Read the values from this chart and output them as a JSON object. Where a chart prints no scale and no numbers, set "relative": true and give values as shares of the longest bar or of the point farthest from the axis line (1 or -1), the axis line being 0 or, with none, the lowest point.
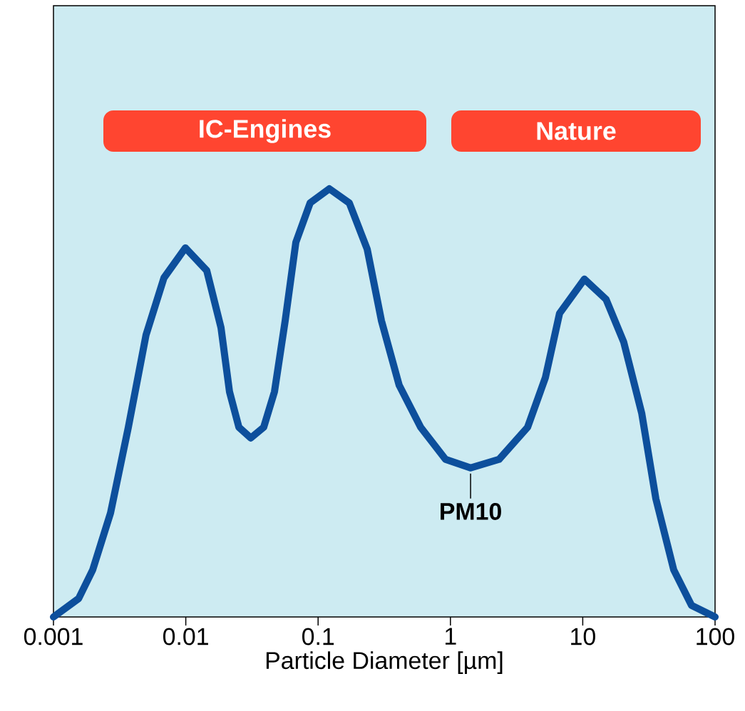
{
  "chart_data": {
    "type": "line",
    "relative": true,
    "xlabel": "Particle Diameter [µm]",
    "log": "x",
    "xlim": [
      0.001,
      100
    ],
    "xticks": [
      0.001,
      0.01,
      0.1,
      1,
      10,
      100
    ],
    "tick_labels": "x",
    "x": [
      0.001,
      0.00155,
      0.00198,
      0.0027,
      0.00368,
      0.00501,
      0.00684,
      0.00993,
      0.0144,
      0.01845,
      0.0214,
      0.0252,
      0.031,
      0.0388,
      0.0468,
      0.0564,
      0.0679,
      0.0871,
      0.1216,
      0.172,
      0.235,
      0.301,
      0.41,
      0.596,
      0.918,
      1.42,
      2.33,
      3.83,
      5.22,
      6.68,
      10.3,
      15.0,
      20.4,
      27.9,
      35.7,
      48.7,
      66.4,
      100
    ],
    "series": [
      {
        "color": "#0d4f9c",
        "values": [
          0,
          0.043,
          0.11,
          0.243,
          0.443,
          0.659,
          0.792,
          0.862,
          0.809,
          0.676,
          0.526,
          0.443,
          0.418,
          0.443,
          0.526,
          0.692,
          0.875,
          0.967,
          1,
          0.967,
          0.859,
          0.692,
          0.541,
          0.443,
          0.368,
          0.348,
          0.368,
          0.443,
          0.559,
          0.709,
          0.789,
          0.742,
          0.642,
          0.476,
          0.276,
          0.11,
          0.027,
          0
        ]
      }
    ],
    "annotations": [
      "IC-Engines",
      "Nature",
      {
        "text": "PM10",
        "x": 1.42,
        "y": 0.348
      }
    ]
  }
}
